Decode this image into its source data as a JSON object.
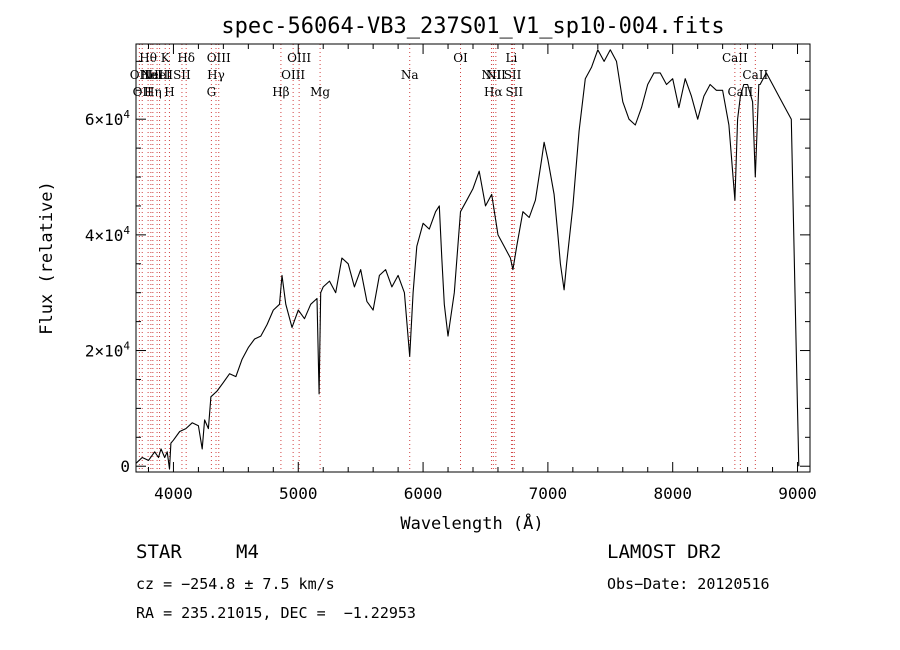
{
  "chart_data": {
    "type": "line",
    "title": "spec-56064-VB3_237S01_V1_sp10-004.fits",
    "xlabel": "Wavelength (Å)",
    "ylabel": "Flux (relative)",
    "xlim": [
      3700,
      9100
    ],
    "ylim": [
      -1000,
      73000
    ],
    "x_ticks": [
      {
        "value": 4000,
        "label": "4000"
      },
      {
        "value": 5000,
        "label": "5000"
      },
      {
        "value": 6000,
        "label": "6000"
      },
      {
        "value": 7000,
        "label": "7000"
      },
      {
        "value": 8000,
        "label": "8000"
      },
      {
        "value": 9000,
        "label": "9000"
      }
    ],
    "y_ticks": [
      {
        "value": 0,
        "label": "0",
        "mant": "",
        "exp": ""
      },
      {
        "value": 20000,
        "label": "",
        "mant": "2×10",
        "exp": "4"
      },
      {
        "value": 40000,
        "label": "",
        "mant": "4×10",
        "exp": "4"
      },
      {
        "value": 60000,
        "label": "",
        "mant": "6×10",
        "exp": "4"
      }
    ],
    "line_color": "#000000",
    "marker_color": "#d04040",
    "spectrum": {
      "x": [
        3700,
        3750,
        3800,
        3850,
        3880,
        3900,
        3930,
        3950,
        3968,
        3980,
        4000,
        4050,
        4100,
        4150,
        4200,
        4230,
        4250,
        4280,
        4300,
        4350,
        4400,
        4450,
        4500,
        4550,
        4600,
        4650,
        4700,
        4750,
        4800,
        4850,
        4870,
        4900,
        4950,
        5000,
        5050,
        5100,
        5150,
        5167,
        5180,
        5200,
        5250,
        5300,
        5350,
        5400,
        5450,
        5500,
        5550,
        5600,
        5650,
        5700,
        5750,
        5800,
        5850,
        5893,
        5920,
        5950,
        6000,
        6050,
        6100,
        6130,
        6150,
        6170,
        6200,
        6250,
        6300,
        6350,
        6400,
        6450,
        6500,
        6550,
        6600,
        6650,
        6700,
        6720,
        6750,
        6800,
        6850,
        6900,
        6950,
        6970,
        7000,
        7050,
        7080,
        7100,
        7130,
        7150,
        7200,
        7250,
        7300,
        7350,
        7400,
        7450,
        7500,
        7550,
        7600,
        7650,
        7700,
        7750,
        7800,
        7850,
        7900,
        7950,
        8000,
        8050,
        8100,
        8150,
        8200,
        8250,
        8300,
        8350,
        8400,
        8450,
        8498,
        8520,
        8542,
        8570,
        8600,
        8640,
        8662,
        8690,
        8700,
        8750,
        8800,
        8850,
        8900,
        8950,
        8980,
        9000,
        9010
      ],
      "y": [
        500,
        1500,
        1000,
        2500,
        1500,
        3000,
        1500,
        2500,
        -500,
        4000,
        4500,
        6000,
        6500,
        7500,
        7000,
        3000,
        8000,
        6500,
        12000,
        13000,
        14500,
        16000,
        15500,
        18500,
        20500,
        22000,
        22500,
        24500,
        27000,
        28000,
        33000,
        28000,
        24000,
        27000,
        25500,
        28000,
        29000,
        12500,
        30000,
        31000,
        32000,
        30000,
        36000,
        35000,
        31000,
        34000,
        28500,
        27000,
        33000,
        34000,
        31000,
        33000,
        30000,
        19000,
        30000,
        38000,
        42000,
        41000,
        44000,
        45000,
        36000,
        28000,
        22500,
        30000,
        44000,
        46000,
        48000,
        51000,
        45000,
        47000,
        40000,
        38000,
        36000,
        34000,
        38000,
        44000,
        43000,
        46000,
        53000,
        56000,
        53000,
        47000,
        40000,
        35000,
        30500,
        35000,
        45000,
        58000,
        67000,
        69000,
        72000,
        70000,
        72000,
        70000,
        63000,
        60000,
        59000,
        62000,
        66000,
        68000,
        68000,
        66000,
        67000,
        62000,
        67000,
        64000,
        60000,
        64000,
        66000,
        65000,
        65000,
        59000,
        46000,
        60000,
        64000,
        66000,
        66000,
        63000,
        50000,
        66000,
        66000,
        68000,
        66000,
        64000,
        62000,
        60000,
        30000,
        10000,
        0
      ]
    },
    "line_markers": [
      {
        "wavelength": 3727,
        "label": "OII",
        "row": 2
      },
      {
        "wavelength": 3750,
        "label": "OII",
        "row": 3
      },
      {
        "wavelength": 3797,
        "label": "Hθ",
        "row": 1
      },
      {
        "wavelength": 3819,
        "label": "HeI",
        "row": 2
      },
      {
        "wavelength": 3835,
        "label": "Hη",
        "row": 3
      },
      {
        "wavelength": 3869,
        "label": "NeIII",
        "row": 2
      },
      {
        "wavelength": 3889,
        "label": "HeI",
        "row": 2
      },
      {
        "wavelength": 3934,
        "label": "K",
        "row": 1
      },
      {
        "wavelength": 3968,
        "label": "H",
        "row": 3
      },
      {
        "wavelength": 4068,
        "label": "SII",
        "row": 2
      },
      {
        "wavelength": 4102,
        "label": "Hδ",
        "row": 1
      },
      {
        "wavelength": 4304,
        "label": "G",
        "row": 3
      },
      {
        "wavelength": 4341,
        "label": "Hγ",
        "row": 2
      },
      {
        "wavelength": 4363,
        "label": "OIII",
        "row": 1
      },
      {
        "wavelength": 4861,
        "label": "Hβ",
        "row": 3
      },
      {
        "wavelength": 4959,
        "label": "OIII",
        "row": 2
      },
      {
        "wavelength": 5007,
        "label": "OIII",
        "row": 1
      },
      {
        "wavelength": 5175,
        "label": "Mg",
        "row": 3
      },
      {
        "wavelength": 5893,
        "label": "Na",
        "row": 2
      },
      {
        "wavelength": 6300,
        "label": "OI",
        "row": 1
      },
      {
        "wavelength": 6548,
        "label": "NII",
        "row": 2
      },
      {
        "wavelength": 6563,
        "label": "Hα",
        "row": 3
      },
      {
        "wavelength": 6583,
        "label": "NII",
        "row": 2
      },
      {
        "wavelength": 6708,
        "label": "Li",
        "row": 1
      },
      {
        "wavelength": 6717,
        "label": "SII",
        "row": 2
      },
      {
        "wavelength": 6731,
        "label": "SII",
        "row": 3
      },
      {
        "wavelength": 8498,
        "label": "CaII",
        "row": 1
      },
      {
        "wavelength": 8542,
        "label": "CaII",
        "row": 3
      },
      {
        "wavelength": 8662,
        "label": "CaII",
        "row": 2
      }
    ]
  },
  "info": {
    "class_label": "STAR",
    "subclass": "M4",
    "survey": "LAMOST DR2",
    "cz": "cz = −254.8 ± 7.5 km/s",
    "obs_date": "Obs−Date: 20120516",
    "coords": "RA = 235.21015, DEC =  −1.22953"
  }
}
